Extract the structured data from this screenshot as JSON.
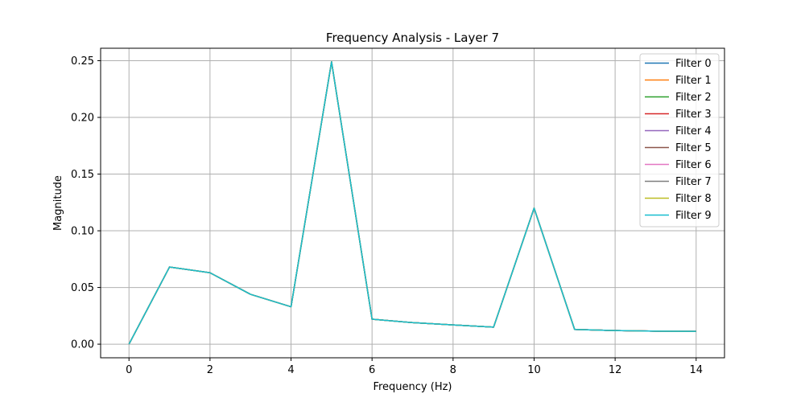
{
  "chart_data": {
    "type": "line",
    "title": "Frequency Analysis - Layer 7",
    "xlabel": "Frequency (Hz)",
    "ylabel": "Magnitude",
    "xlim": [
      -0.7,
      14.7
    ],
    "ylim": [
      -0.012,
      0.261
    ],
    "xticks": [
      0,
      2,
      4,
      6,
      8,
      10,
      12,
      14
    ],
    "yticks": [
      0.0,
      0.05,
      0.1,
      0.15,
      0.2,
      0.25
    ],
    "ytick_labels": [
      "0.00",
      "0.05",
      "0.10",
      "0.15",
      "0.20",
      "0.25"
    ],
    "grid": true,
    "legend_position": "top-right",
    "x": [
      0,
      1,
      2,
      3,
      4,
      5,
      6,
      7,
      8,
      9,
      10,
      11,
      12,
      13,
      14
    ],
    "series": [
      {
        "name": "Filter 0",
        "color": "#1f77b4",
        "values": [
          0.0,
          0.068,
          0.063,
          0.044,
          0.033,
          0.249,
          0.022,
          0.019,
          0.017,
          0.015,
          0.12,
          0.013,
          0.012,
          0.0115,
          0.0113
        ]
      },
      {
        "name": "Filter 1",
        "color": "#ff7f0e",
        "values": [
          0.0,
          0.068,
          0.063,
          0.044,
          0.033,
          0.249,
          0.022,
          0.019,
          0.017,
          0.015,
          0.12,
          0.013,
          0.012,
          0.0115,
          0.0113
        ]
      },
      {
        "name": "Filter 2",
        "color": "#2ca02c",
        "values": [
          0.0,
          0.068,
          0.063,
          0.044,
          0.033,
          0.249,
          0.022,
          0.019,
          0.017,
          0.015,
          0.12,
          0.013,
          0.012,
          0.0115,
          0.0113
        ]
      },
      {
        "name": "Filter 3",
        "color": "#d62728",
        "values": [
          0.0,
          0.068,
          0.063,
          0.044,
          0.033,
          0.249,
          0.022,
          0.019,
          0.017,
          0.015,
          0.12,
          0.013,
          0.012,
          0.0115,
          0.0113
        ]
      },
      {
        "name": "Filter 4",
        "color": "#9467bd",
        "values": [
          0.0,
          0.068,
          0.063,
          0.044,
          0.033,
          0.249,
          0.022,
          0.019,
          0.017,
          0.015,
          0.12,
          0.013,
          0.012,
          0.0115,
          0.0113
        ]
      },
      {
        "name": "Filter 5",
        "color": "#8c564b",
        "values": [
          0.0,
          0.068,
          0.063,
          0.044,
          0.033,
          0.249,
          0.022,
          0.019,
          0.017,
          0.015,
          0.12,
          0.013,
          0.012,
          0.0115,
          0.0113
        ]
      },
      {
        "name": "Filter 6",
        "color": "#e377c2",
        "values": [
          0.0,
          0.068,
          0.063,
          0.044,
          0.033,
          0.249,
          0.022,
          0.019,
          0.017,
          0.015,
          0.12,
          0.013,
          0.012,
          0.0115,
          0.0113
        ]
      },
      {
        "name": "Filter 7",
        "color": "#7f7f7f",
        "values": [
          0.0,
          0.068,
          0.063,
          0.044,
          0.033,
          0.249,
          0.022,
          0.019,
          0.017,
          0.015,
          0.12,
          0.013,
          0.012,
          0.0115,
          0.0113
        ]
      },
      {
        "name": "Filter 8",
        "color": "#bcbd22",
        "values": [
          0.0,
          0.068,
          0.063,
          0.044,
          0.033,
          0.249,
          0.022,
          0.019,
          0.017,
          0.015,
          0.12,
          0.013,
          0.012,
          0.0115,
          0.0113
        ]
      },
      {
        "name": "Filter 9",
        "color": "#17becf",
        "values": [
          0.0,
          0.068,
          0.063,
          0.044,
          0.033,
          0.249,
          0.022,
          0.019,
          0.017,
          0.015,
          0.12,
          0.013,
          0.012,
          0.0115,
          0.0113
        ]
      }
    ]
  }
}
